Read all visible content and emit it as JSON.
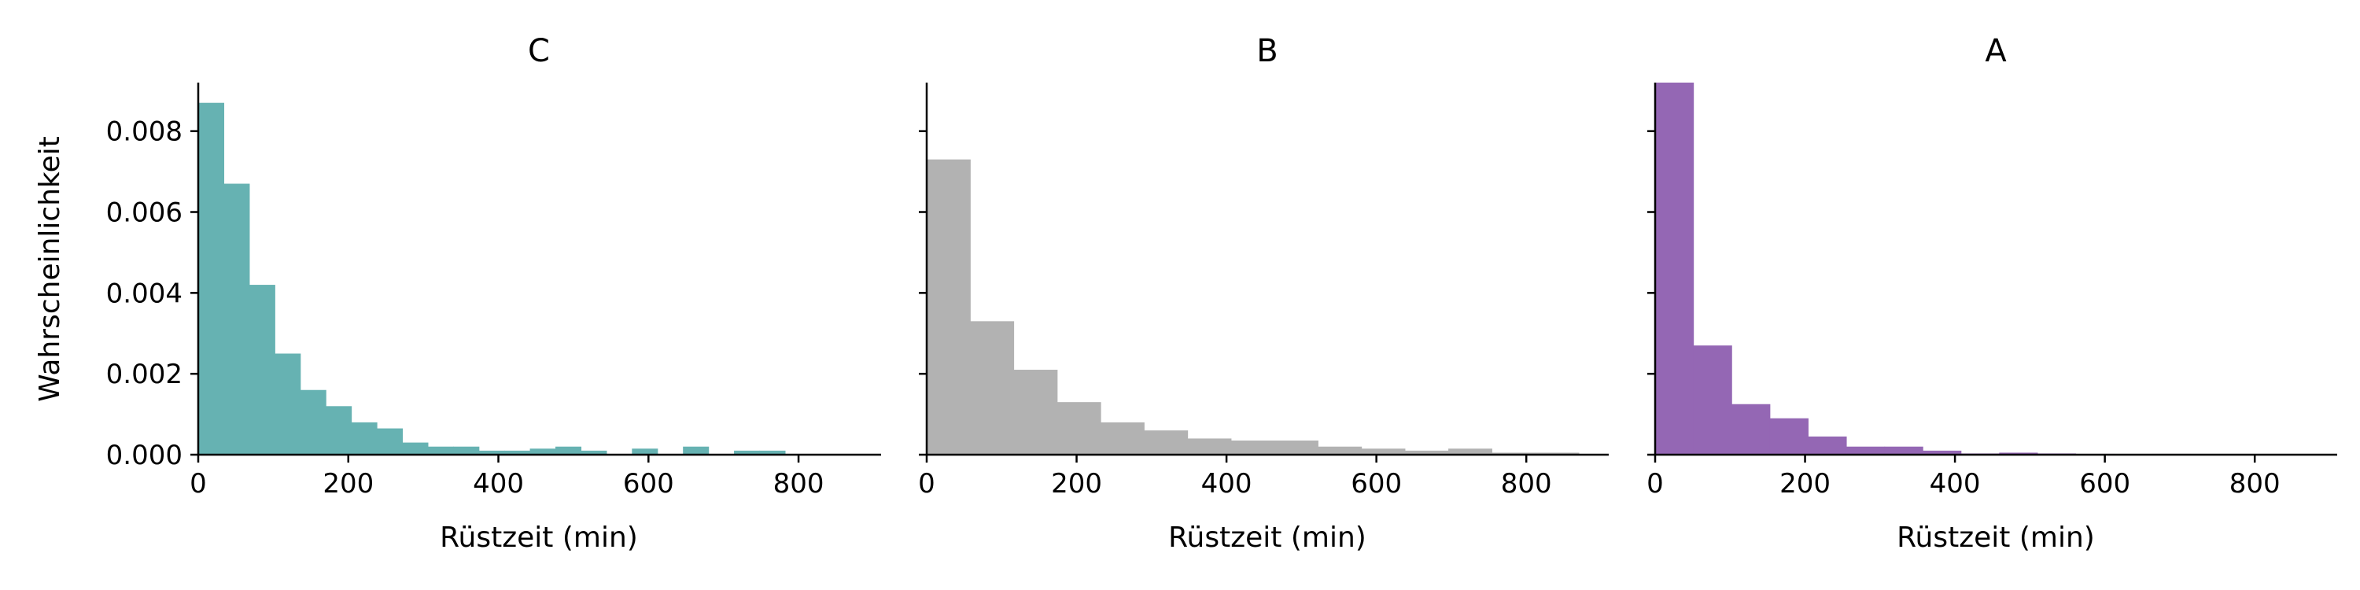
{
  "chart_data": [
    {
      "type": "bar",
      "title": "C",
      "xlabel": "Rüstzeit (min)",
      "ylabel": "Wahrscheinlichkeit",
      "color": "#66B2B2",
      "xlim": [
        0,
        910
      ],
      "ylim": [
        0,
        0.0092
      ],
      "xticks": [
        "0",
        "200",
        "400",
        "600",
        "800"
      ],
      "yticks": [
        "0.000",
        "0.002",
        "0.004",
        "0.006",
        "0.008"
      ],
      "bin_edges": [
        0,
        34,
        68,
        102,
        136,
        170,
        204,
        238,
        272,
        306,
        340,
        374,
        408,
        442,
        476,
        510,
        544,
        578,
        612,
        646,
        680,
        714,
        748,
        782,
        816,
        850,
        884
      ],
      "values": [
        0.0087,
        0.0067,
        0.0042,
        0.0025,
        0.0016,
        0.0012,
        0.0008,
        0.00065,
        0.0003,
        0.0002,
        0.0002,
        0.0001,
        0.0001,
        0.00015,
        0.0002,
        0.0001,
        0.0,
        0.00015,
        0.0,
        0.0002,
        0.0,
        0.0001,
        0.0001,
        0.0,
        0.0,
        0.0
      ]
    },
    {
      "type": "bar",
      "title": "B",
      "xlabel": "Rüstzeit (min)",
      "ylabel": "",
      "color": "#B2B2B2",
      "xlim": [
        0,
        910
      ],
      "ylim": [
        0,
        0.0092
      ],
      "xticks": [
        "0",
        "200",
        "400",
        "600",
        "800"
      ],
      "yticks": [],
      "bin_edges": [
        0,
        58,
        116,
        174,
        232,
        290,
        348,
        406,
        464,
        522,
        580,
        638,
        696,
        754,
        812,
        870
      ],
      "values": [
        0.0073,
        0.0033,
        0.0021,
        0.0013,
        0.0008,
        0.0006,
        0.0004,
        0.00035,
        0.00035,
        0.0002,
        0.00015,
        0.0001,
        0.00015,
        5e-05,
        5e-05
      ]
    },
    {
      "type": "bar",
      "title": "A",
      "xlabel": "Rüstzeit (min)",
      "ylabel": "",
      "color": "#9467B4",
      "xlim": [
        0,
        910
      ],
      "ylim": [
        0,
        0.0092
      ],
      "xticks": [
        "0",
        "200",
        "400",
        "600",
        "800"
      ],
      "yticks": [],
      "bin_edges": [
        0,
        51,
        102,
        153,
        204,
        255,
        306,
        357,
        408,
        459,
        510,
        561,
        612,
        663,
        714,
        765,
        816,
        867
      ],
      "values": [
        0.0092,
        0.0027,
        0.00125,
        0.0009,
        0.00045,
        0.0002,
        0.0002,
        0.0001,
        3e-05,
        5e-05,
        3e-05,
        2e-05,
        0.0,
        2e-05,
        1e-05,
        0.0,
        0.0
      ]
    }
  ]
}
